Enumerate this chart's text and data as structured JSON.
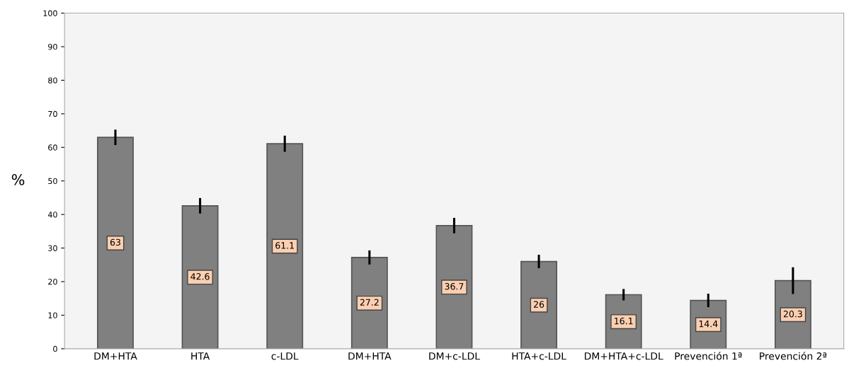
{
  "chart_data": {
    "type": "bar",
    "ylabel": "%",
    "categories": [
      "DM+HTA",
      "HTA",
      "c-LDL",
      "DM+HTA",
      "DM+c-LDL",
      "HTA+c-LDL",
      "DM+HTA+c-LDL",
      "Prevención 1ª",
      "Prevención 2ª"
    ],
    "values": [
      63,
      42.6,
      61.1,
      27.2,
      36.7,
      26,
      16.1,
      14.4,
      20.3
    ],
    "errors": [
      2.3,
      2.3,
      2.4,
      2.1,
      2.3,
      2,
      1.7,
      2,
      4
    ],
    "color": "#808080",
    "ylim": [
      0,
      100
    ],
    "yticks": [
      0,
      10,
      20,
      30,
      40,
      50,
      60,
      70,
      80,
      90,
      100
    ],
    "data_labels": true,
    "grid": false
  }
}
